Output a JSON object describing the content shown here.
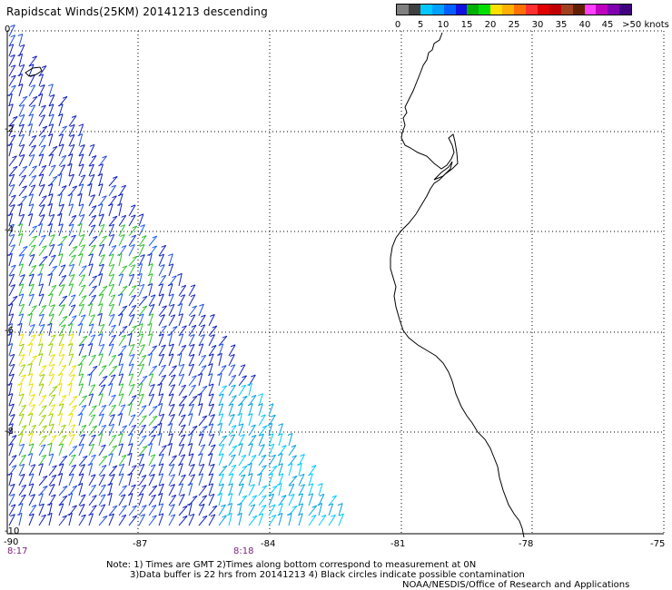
{
  "title": "Rapidscat Winds(25KM) 20141213 descending",
  "legend": {
    "colors": [
      "#808080",
      "#404040",
      "#00c8ff",
      "#00a0ff",
      "#0060ff",
      "#1010e0",
      "#00b000",
      "#00e000",
      "#ffe000",
      "#ffb000",
      "#ff7000",
      "#ff3030",
      "#e00000",
      "#c00000",
      "#a04020",
      "#602000",
      "#ff40ff",
      "#c000c0",
      "#8000b0",
      "#400080"
    ],
    "labels": [
      "0",
      "5",
      "10",
      "15",
      "20",
      "25",
      "30",
      "35",
      "40",
      "45",
      ">50 knots"
    ]
  },
  "axes": {
    "lat_labels": [
      "0",
      "-2",
      "-4",
      "-6",
      "-8",
      "-10"
    ],
    "lon_labels": [
      "-90",
      "-87",
      "-84",
      "-81",
      "-78",
      "-75"
    ]
  },
  "time_marks": [
    "8:17",
    "8:18"
  ],
  "notes": [
    "Note: 1) Times are GMT 2)Times along bottom correspond to measurement at 0N",
    "3)Data buffer is 22 hrs from 20141213 4) Black circles indicate possible contamination",
    "NOAA/NESDIS/Office of Research and Applications"
  ]
}
